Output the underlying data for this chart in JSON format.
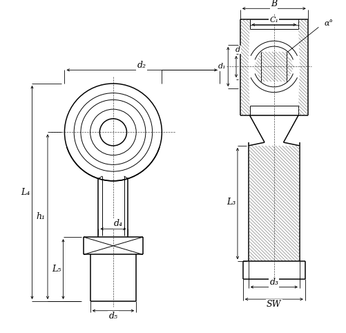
{
  "bg_color": "#ffffff",
  "line_color": "#000000",
  "lw_thin": 0.7,
  "lw_med": 1.1,
  "lw_dim": 0.6,
  "labels": {
    "d2": "d₂",
    "L4": "L₄",
    "h1": "h₁",
    "d4": "d₄",
    "L5": "L₅",
    "d5": "d₅",
    "B": "B",
    "C1": "C₁",
    "alpha": "α°",
    "d1": "d₁",
    "d": "d",
    "L3": "L₃",
    "d3": "d₃",
    "SW": "SW"
  }
}
